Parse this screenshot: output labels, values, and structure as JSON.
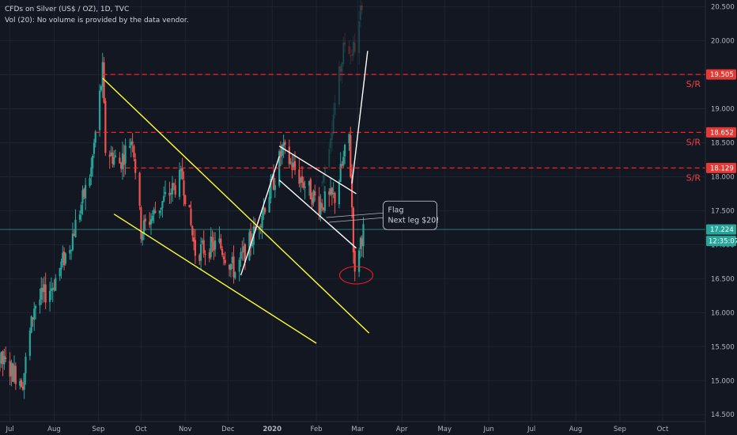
{
  "legend": {
    "title": "CFDs on Silver (US$ / OZ), 1D, TVC",
    "volume_note": "Vol (20): No volume is provided by the data vendor."
  },
  "colors": {
    "background": "#131722",
    "grid": "#1f2433",
    "up": "#26a69a",
    "down": "#ef5350",
    "sr_line": "#ff1f1f",
    "sr_text": "#ef4040",
    "wedge": "#ffff33",
    "channel": "#ffffff",
    "last_price": "#26a69a",
    "last_price_line": "#26a69a",
    "axis_text": "#b2b5be"
  },
  "chart_data": {
    "type": "candlestick",
    "title": "CFDs on Silver (US$ / OZ), 1D, TVC",
    "x_axis": {
      "tick_labels": [
        "Jul",
        "Aug",
        "Sep",
        "Oct",
        "Nov",
        "Dec",
        "2020",
        "Feb",
        "Mar",
        "Apr",
        "May",
        "Jun",
        "Jul",
        "Aug",
        "Sep",
        "Oct"
      ],
      "range": [
        "2019-06-24",
        "2020-10-31"
      ]
    },
    "y_axis": {
      "ticks": [
        "20.500",
        "20.000",
        "19.500",
        "19.000",
        "18.500",
        "18.000",
        "17.500",
        "17.000",
        "16.500",
        "16.000",
        "15.500",
        "15.000",
        "14.500"
      ],
      "range": [
        14.2,
        20.6
      ],
      "position": "right"
    },
    "grid": true,
    "price_path": [
      [
        "2019-06-24",
        15.3
      ],
      [
        "2019-07-10",
        15.0
      ],
      [
        "2019-07-18",
        16.1
      ],
      [
        "2019-07-31",
        16.4
      ],
      [
        "2019-08-12",
        17.0
      ],
      [
        "2019-08-27",
        18.1
      ],
      [
        "2019-09-04",
        19.55
      ],
      [
        "2019-09-06",
        18.4
      ],
      [
        "2019-09-16",
        18.2
      ],
      [
        "2019-09-25",
        18.6
      ],
      [
        "2019-10-01",
        17.2
      ],
      [
        "2019-10-15",
        17.6
      ],
      [
        "2019-10-30",
        18.0
      ],
      [
        "2019-11-08",
        16.9
      ],
      [
        "2019-11-25",
        17.0
      ],
      [
        "2019-12-06",
        16.6
      ],
      [
        "2019-12-20",
        17.2
      ],
      [
        "2020-01-03",
        18.0
      ],
      [
        "2020-01-08",
        18.4
      ],
      [
        "2020-01-20",
        18.0
      ],
      [
        "2020-02-03",
        17.6
      ],
      [
        "2020-02-14",
        17.7
      ],
      [
        "2020-02-24",
        18.6
      ],
      [
        "2020-02-28",
        16.5
      ],
      [
        "2020-03-02",
        17.0
      ],
      [
        "2020-03-05",
        17.2
      ]
    ],
    "faded_path": [
      [
        "2020-02-05",
        17.9
      ],
      [
        "2020-02-12",
        18.8
      ],
      [
        "2020-02-18",
        19.6
      ],
      [
        "2020-02-22",
        20.1
      ],
      [
        "2020-02-25",
        19.8
      ],
      [
        "2020-03-01",
        20.0
      ],
      [
        "2020-03-04",
        20.6
      ]
    ],
    "last_price": {
      "value": "17.224",
      "countdown": "12:35:07"
    },
    "levels": [
      {
        "value": 19.505,
        "label": "19.505",
        "tag": "S/R",
        "from": "2019-09-04"
      },
      {
        "value": 18.652,
        "label": "18.652",
        "tag": "S/R",
        "from": "2019-08-30"
      },
      {
        "value": 18.129,
        "label": "18.129",
        "tag": "S/R",
        "from": "2019-09-20"
      }
    ],
    "trendlines": [
      {
        "name": "wedge-upper",
        "color": "wedge",
        "from": [
          "2019-09-04",
          19.45
        ],
        "to": [
          "2020-03-09",
          15.7
        ]
      },
      {
        "name": "wedge-lower",
        "color": "wedge",
        "from": [
          "2019-09-12",
          17.45
        ],
        "to": [
          "2020-02-01",
          15.55
        ]
      },
      {
        "name": "rally-line",
        "color": "channel",
        "from": [
          "2019-12-10",
          16.55
        ],
        "to": [
          "2020-01-06",
          18.3
        ]
      },
      {
        "name": "flag-upper",
        "color": "channel",
        "from": [
          "2020-01-06",
          18.45
        ],
        "to": [
          "2020-02-29",
          17.75
        ]
      },
      {
        "name": "flag-lower",
        "color": "channel",
        "from": [
          "2020-01-06",
          17.95
        ],
        "to": [
          "2020-02-29",
          16.95
        ]
      },
      {
        "name": "breakout-line",
        "color": "channel",
        "from": [
          "2020-02-26",
          17.9
        ],
        "to": [
          "2020-03-08",
          19.85
        ]
      }
    ],
    "annotations": [
      {
        "lines": [
          "Flag",
          "Next leg $20!"
        ],
        "anchor": [
          "2020-03-20",
          17.42
        ]
      }
    ],
    "highlight_circle": {
      "center": [
        "2020-02-29",
        16.55
      ]
    }
  }
}
